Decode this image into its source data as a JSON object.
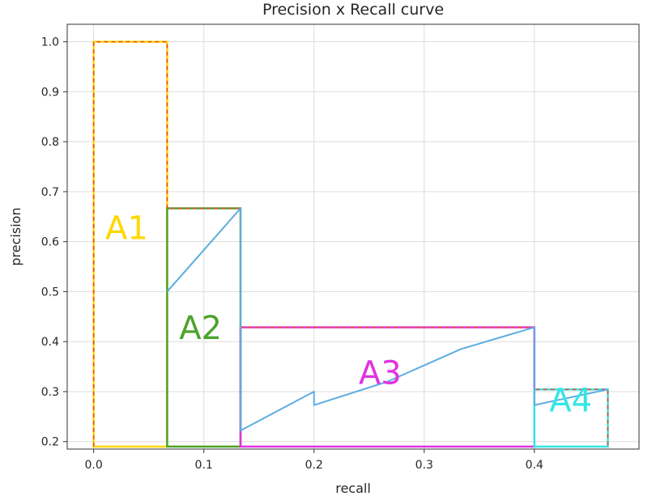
{
  "chart_data": {
    "type": "line",
    "title": "Precision x Recall curve",
    "xlabel": "recall",
    "ylabel": "precision",
    "xlim": [
      -0.024,
      0.495
    ],
    "ylim": [
      0.185,
      1.035
    ],
    "x_ticks": [
      0.0,
      0.1,
      0.2,
      0.3,
      0.4
    ],
    "x_tick_labels": [
      "0.0",
      "0.1",
      "0.2",
      "0.3",
      "0.4"
    ],
    "y_ticks": [
      0.2,
      0.3,
      0.4,
      0.5,
      0.6,
      0.7,
      0.8,
      0.9,
      1.0
    ],
    "y_tick_labels": [
      "0.2",
      "0.3",
      "0.4",
      "0.5",
      "0.6",
      "0.7",
      "0.8",
      "0.9",
      "1.0"
    ],
    "grid": true,
    "colors": {
      "curve": "#5DADE2",
      "interpolated": "#E74C3C",
      "grid": "#dddddd",
      "axes": "#333333"
    },
    "curve": {
      "x": [
        0.0667,
        0.1333,
        0.1333,
        0.2,
        0.2,
        0.2667,
        0.3333,
        0.4,
        0.4,
        0.4667
      ],
      "y": [
        0.5,
        0.6667,
        0.222,
        0.3,
        0.273,
        0.32,
        0.385,
        0.4286,
        0.273,
        0.3043
      ]
    },
    "interpolated_envelope": {
      "x": [
        0.0,
        0.0,
        0.0667,
        0.0667,
        0.1333,
        0.1333,
        0.4,
        0.4,
        0.4667,
        0.4667
      ],
      "y": [
        0.19,
        1.0,
        1.0,
        0.6667,
        0.6667,
        0.4286,
        0.4286,
        0.3043,
        0.3043,
        0.19
      ]
    },
    "areas": [
      {
        "label": "A1",
        "x0": 0.0,
        "x1": 0.0667,
        "top": 1.0,
        "color": "#FFD700",
        "label_x": 0.03,
        "label_y": 0.605
      },
      {
        "label": "A2",
        "x0": 0.0667,
        "x1": 0.1333,
        "top": 0.6667,
        "color": "#4CA32A",
        "label_x": 0.097,
        "label_y": 0.405
      },
      {
        "label": "A3",
        "x0": 0.1333,
        "x1": 0.4,
        "top": 0.4286,
        "color": "#E033E0",
        "label_x": 0.26,
        "label_y": 0.315
      },
      {
        "label": "A4",
        "x0": 0.4,
        "x1": 0.4667,
        "top": 0.3043,
        "color": "#33E6E6",
        "label_x": 0.433,
        "label_y": 0.26
      }
    ],
    "rect_bottom": 0.19
  }
}
